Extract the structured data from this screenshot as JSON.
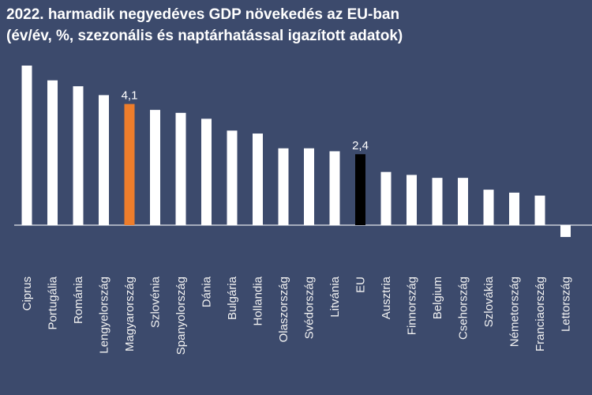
{
  "chart_data": {
    "type": "bar",
    "title": "2022. harmadik negyedéves GDP növekedés az EU-ban",
    "subtitle": "(év/év, %, szezonális és naptárhatással igazított adatok)",
    "categories": [
      "Ciprus",
      "Portugália",
      "Románia",
      "Lengyelország",
      "Magyarország",
      "Szlovénia",
      "Spanyolország",
      "Dánia",
      "Bulgária",
      "Hollandia",
      "Olaszország",
      "Svédország",
      "Litvánia",
      "EU",
      "Ausztria",
      "Finnország",
      "Belgium",
      "Csehország",
      "Szlovákia",
      "Németország",
      "Franciaország",
      "Lettország"
    ],
    "values": [
      5.4,
      4.9,
      4.7,
      4.4,
      4.1,
      3.9,
      3.8,
      3.6,
      3.2,
      3.1,
      2.6,
      2.6,
      2.5,
      2.4,
      1.8,
      1.7,
      1.6,
      1.6,
      1.2,
      1.1,
      1.0,
      -0.4
    ],
    "value_labels": [
      null,
      null,
      null,
      null,
      "4,1",
      null,
      null,
      null,
      null,
      null,
      null,
      null,
      null,
      "2,4",
      null,
      null,
      null,
      null,
      null,
      null,
      null,
      null
    ],
    "colors": [
      "#ffffff",
      "#ffffff",
      "#ffffff",
      "#ffffff",
      "#ee7d2b",
      "#ffffff",
      "#ffffff",
      "#ffffff",
      "#ffffff",
      "#ffffff",
      "#ffffff",
      "#ffffff",
      "#ffffff",
      "#000000",
      "#ffffff",
      "#ffffff",
      "#ffffff",
      "#ffffff",
      "#ffffff",
      "#ffffff",
      "#ffffff",
      "#ffffff"
    ]
  }
}
